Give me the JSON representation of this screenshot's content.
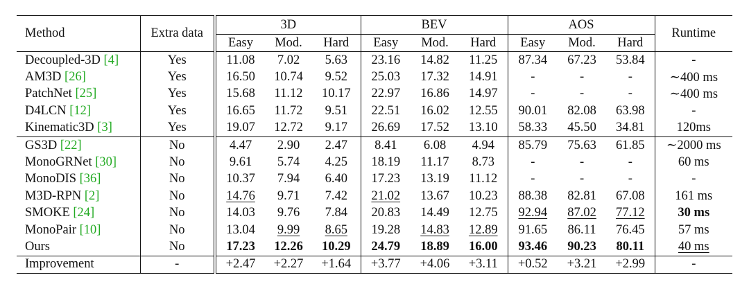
{
  "header": {
    "method": "Method",
    "extra": "Extra data",
    "groups": [
      "3D",
      "BEV",
      "AOS"
    ],
    "runtime": "Runtime",
    "subcols": [
      "Easy",
      "Mod.",
      "Hard",
      "Easy",
      "Mod.",
      "Hard",
      "Easy",
      "Mod.",
      "Hard"
    ]
  },
  "rows": [
    {
      "name": "Decoupled-3D ",
      "cite": "[4]",
      "extra": "Yes",
      "vals": [
        "11.08",
        "7.02",
        "5.63",
        "23.16",
        "14.82",
        "11.25",
        "87.34",
        "67.23",
        "53.84"
      ],
      "runtime": "-"
    },
    {
      "name": "AM3D ",
      "cite": "[26]",
      "extra": "Yes",
      "vals": [
        "16.50",
        "10.74",
        "9.52",
        "25.03",
        "17.32",
        "14.91",
        "-",
        "-",
        "-"
      ],
      "runtime": "∼400 ms"
    },
    {
      "name": "PatchNet ",
      "cite": "[25]",
      "extra": "Yes",
      "vals": [
        "15.68",
        "11.12",
        "10.17",
        "22.97",
        "16.86",
        "14.97",
        "-",
        "-",
        "-"
      ],
      "runtime": "∼400 ms"
    },
    {
      "name": "D4LCN ",
      "cite": "[12]",
      "extra": "Yes",
      "vals": [
        "16.65",
        "11.72",
        "9.51",
        "22.51",
        "16.02",
        "12.55",
        "90.01",
        "82.08",
        "63.98"
      ],
      "runtime": "-"
    },
    {
      "name": "Kinematic3D ",
      "cite": "[3]",
      "extra": "Yes",
      "vals": [
        "19.07",
        "12.72",
        "9.17",
        "26.69",
        "17.52",
        "13.10",
        "58.33",
        "45.50",
        "34.81"
      ],
      "runtime": "120ms"
    },
    {
      "name": "GS3D ",
      "cite": "[22]",
      "extra": "No",
      "vals": [
        "4.47",
        "2.90",
        "2.47",
        "8.41",
        "6.08",
        "4.94",
        "85.79",
        "75.63",
        "61.85"
      ],
      "runtime": "∼2000 ms"
    },
    {
      "name": "MonoGRNet ",
      "cite": "[30]",
      "extra": "No",
      "vals": [
        "9.61",
        "5.74",
        "4.25",
        "18.19",
        "11.17",
        "8.73",
        "-",
        "-",
        "-"
      ],
      "runtime": "60 ms"
    },
    {
      "name": "MonoDIS ",
      "cite": "[36]",
      "extra": "No",
      "vals": [
        "10.37",
        "7.94",
        "6.40",
        "17.23",
        "13.19",
        "11.12",
        "-",
        "-",
        "-"
      ],
      "runtime": "-"
    },
    {
      "name": "M3D-RPN ",
      "cite": "[2]",
      "extra": "No",
      "vals": [
        "14.76",
        "9.71",
        "7.42",
        "21.02",
        "13.67",
        "10.23",
        "88.38",
        "82.81",
        "67.08"
      ],
      "runtime": "161 ms"
    },
    {
      "name": "SMOKE ",
      "cite": "[24]",
      "extra": "No",
      "vals": [
        "14.03",
        "9.76",
        "7.84",
        "20.83",
        "14.49",
        "12.75",
        "92.94",
        "87.02",
        "77.12"
      ],
      "runtime": "30 ms"
    },
    {
      "name": "MonoPair ",
      "cite": "[10]",
      "extra": "No",
      "vals": [
        "13.04",
        "9.99",
        "8.65",
        "19.28",
        "14.83",
        "12.89",
        "91.65",
        "86.11",
        "76.45"
      ],
      "runtime": "57 ms"
    },
    {
      "name": "Ours",
      "cite": "",
      "extra": "No",
      "vals": [
        "17.23",
        "12.26",
        "10.29",
        "24.79",
        "18.89",
        "16.00",
        "93.46",
        "90.23",
        "80.11"
      ],
      "runtime": "40 ms"
    }
  ],
  "improvement": {
    "name": "Improvement",
    "extra": "-",
    "vals": [
      "+2.47",
      "+2.27",
      "+1.64",
      "+3.77",
      "+4.06",
      "+3.11",
      "+0.52",
      "+3.21",
      "+2.99"
    ],
    "runtime": "-"
  },
  "underlined": [
    [
      8,
      0
    ],
    [
      8,
      3
    ],
    [
      9,
      6
    ],
    [
      9,
      7
    ],
    [
      9,
      8
    ],
    [
      10,
      1
    ],
    [
      10,
      2
    ],
    [
      10,
      4
    ],
    [
      10,
      5
    ],
    [
      11,
      "runtime"
    ]
  ],
  "bold": [
    [
      9,
      "runtime"
    ],
    [
      11,
      0
    ],
    [
      11,
      1
    ],
    [
      11,
      2
    ],
    [
      11,
      3
    ],
    [
      11,
      4
    ],
    [
      11,
      5
    ],
    [
      11,
      6
    ],
    [
      11,
      7
    ],
    [
      11,
      8
    ]
  ]
}
